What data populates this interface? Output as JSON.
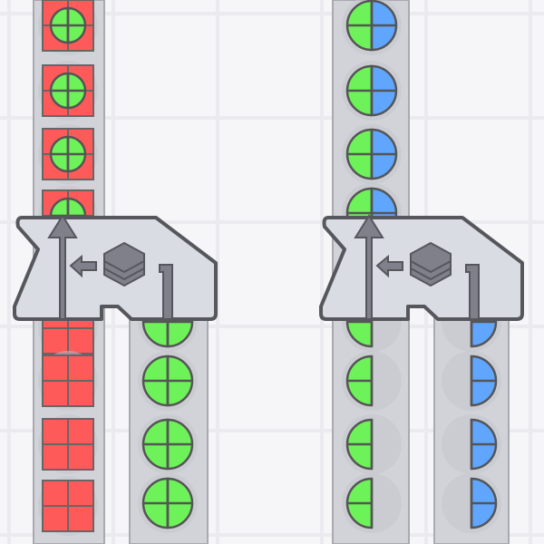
{
  "game": {
    "colors": {
      "background": "#f6f6f8",
      "grid": "#ebebef",
      "belt": "#d2d3d8",
      "belt_edge": "#a9aab0",
      "machine": "#dadce4",
      "machine_outline": "#55575d",
      "icon": "#7f8089",
      "red": "#ff5a5a",
      "green": "#6ef25a",
      "blue": "#60a6ff",
      "shape_outline": "#555555"
    },
    "buildings": [
      {
        "type": "stacker",
        "icon": "layers-icon",
        "input_bottom": "red-square-with-green-circle",
        "input_right": "green-circle",
        "output": "up"
      },
      {
        "type": "stacker",
        "icon": "layers-icon",
        "input_bottom": "half-green-circle-left",
        "input_right": "half-blue-circle-right",
        "output": "up"
      }
    ],
    "items": {
      "left_output": "green-circle-on-red-square",
      "left_input_a": "red-square",
      "left_input_b": "green-circle",
      "right_output": "green-blue-circle",
      "right_input_a": "green-left-half-circle",
      "right_input_b": "blue-right-half-circle"
    }
  }
}
